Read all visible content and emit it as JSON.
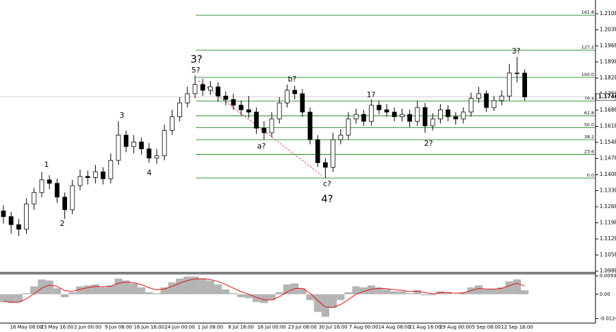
{
  "chart_data": [
    {
      "type": "candlestick",
      "categories": [
        null,
        null,
        null,
        "16 May 08:00",
        null,
        null,
        null,
        "23 May 16:00",
        null,
        null,
        null,
        "2 Jun 00:00",
        null,
        null,
        null,
        "9 Jun 08:00",
        null,
        null,
        null,
        "16 Jun 16:00",
        null,
        null,
        null,
        "24 Jun 00:00",
        null,
        null,
        null,
        "1 Jul 08:00",
        null,
        null,
        null,
        "8 Jul 16:00",
        null,
        null,
        null,
        "16 Jul 00:00",
        null,
        null,
        null,
        "23 Jul 08:00",
        null,
        null,
        null,
        "30 Jul 16:00",
        null,
        null,
        null,
        "7 Aug 00:00",
        null,
        null,
        null,
        "14 Aug 08:00",
        null,
        null,
        null,
        "21 Aug 16:00",
        null,
        null,
        null,
        "29 Aug 00:00",
        null,
        null,
        null,
        "5 Sep 08:00",
        null,
        null,
        null,
        "12 Sep 16:00",
        null
      ],
      "open": [
        1.125,
        1.1225,
        1.119,
        1.117,
        1.128,
        1.133,
        1.1385,
        1.137,
        1.131,
        1.1255,
        1.136,
        1.14,
        1.1395,
        1.142,
        1.139,
        1.147,
        1.158,
        1.153,
        1.155,
        1.152,
        1.148,
        1.149,
        1.16,
        1.166,
        1.172,
        1.176,
        1.18,
        1.1775,
        1.179,
        1.175,
        1.1735,
        1.171,
        1.169,
        1.168,
        1.161,
        1.159,
        1.165,
        1.172,
        1.1775,
        1.176,
        1.168,
        1.156,
        1.146,
        1.144,
        1.156,
        1.158,
        1.165,
        1.167,
        1.164,
        1.171,
        1.169,
        1.168,
        1.166,
        1.167,
        1.164,
        1.17,
        1.162,
        1.165,
        1.169,
        1.166,
        1.165,
        1.168,
        1.174,
        1.176,
        1.17,
        1.173,
        1.175,
        1.185,
        1.185
      ],
      "high": [
        1.1275,
        1.1245,
        1.1215,
        1.1305,
        1.135,
        1.142,
        1.1405,
        1.139,
        1.133,
        1.1385,
        1.143,
        1.1425,
        1.145,
        1.144,
        1.15,
        1.164,
        1.16,
        1.158,
        1.157,
        1.1545,
        1.152,
        1.1625,
        1.169,
        1.1745,
        1.179,
        1.184,
        1.1825,
        1.1815,
        1.181,
        1.177,
        1.176,
        1.173,
        1.175,
        1.17,
        1.164,
        1.168,
        1.1745,
        1.18,
        1.1795,
        1.178,
        1.17,
        1.158,
        1.148,
        1.159,
        1.1605,
        1.168,
        1.1695,
        1.169,
        1.1735,
        1.173,
        1.1715,
        1.17,
        1.1695,
        1.169,
        1.173,
        1.172,
        1.1675,
        1.1715,
        1.171,
        1.168,
        1.17,
        1.1765,
        1.179,
        1.1775,
        1.175,
        1.1775,
        1.189,
        1.192,
        1.1865
      ],
      "low": [
        1.1195,
        1.115,
        1.114,
        1.115,
        1.1255,
        1.131,
        1.1345,
        1.1285,
        1.1215,
        1.1235,
        1.134,
        1.1365,
        1.137,
        1.1365,
        1.137,
        1.145,
        1.1505,
        1.15,
        1.1495,
        1.146,
        1.1455,
        1.147,
        1.158,
        1.164,
        1.17,
        1.174,
        1.175,
        1.1755,
        1.1725,
        1.171,
        1.169,
        1.1665,
        1.1655,
        1.1585,
        1.156,
        1.157,
        1.163,
        1.17,
        1.1735,
        1.166,
        1.154,
        1.144,
        1.1393,
        1.142,
        1.154,
        1.156,
        1.163,
        1.162,
        1.162,
        1.167,
        1.166,
        1.164,
        1.164,
        1.1615,
        1.162,
        1.159,
        1.16,
        1.163,
        1.164,
        1.1625,
        1.163,
        1.166,
        1.172,
        1.168,
        1.1685,
        1.171,
        1.173,
        1.181,
        1.173
      ],
      "close": [
        1.1225,
        1.119,
        1.117,
        1.128,
        1.133,
        1.1385,
        1.137,
        1.131,
        1.1255,
        1.136,
        1.14,
        1.1395,
        1.142,
        1.139,
        1.147,
        1.158,
        1.153,
        1.155,
        1.152,
        1.148,
        1.149,
        1.16,
        1.166,
        1.172,
        1.176,
        1.18,
        1.1775,
        1.179,
        1.175,
        1.1735,
        1.171,
        1.169,
        1.168,
        1.161,
        1.159,
        1.165,
        1.172,
        1.1775,
        1.176,
        1.168,
        1.156,
        1.146,
        1.144,
        1.156,
        1.158,
        1.165,
        1.167,
        1.164,
        1.171,
        1.169,
        1.168,
        1.166,
        1.167,
        1.164,
        1.17,
        1.162,
        1.165,
        1.169,
        1.166,
        1.165,
        1.168,
        1.174,
        1.176,
        1.17,
        1.173,
        1.175,
        1.185,
        1.185,
        1.1746
      ],
      "ylim": [
        1.0982,
        1.2168
      ],
      "yticks": [
        1.2108,
        1.2038,
        1.1968,
        1.1898,
        1.1828,
        1.1758,
        1.1688,
        1.1618,
        1.1548,
        1.1478,
        1.1408,
        1.1338,
        1.1268,
        1.1198,
        1.1128,
        1.1058,
        1.0988
      ],
      "last_price": 1.1746,
      "fib": {
        "color": "#1f8a1f",
        "levels": [
          "161.8",
          "127.2",
          "100.0",
          "76.4",
          "61.8",
          "50.0",
          "38.2",
          "23.6",
          "0.0"
        ],
        "prices": [
          1.2102,
          1.195,
          1.1831,
          1.1728,
          1.1664,
          1.1612,
          1.156,
          1.1496,
          1.1393
        ]
      },
      "wave_labels": [
        {
          "text": "1",
          "color": "#e02020"
        },
        {
          "text": "2",
          "color": "#e02020"
        },
        {
          "text": "3",
          "color": "#e02020"
        },
        {
          "text": "4",
          "color": "#e02020"
        },
        {
          "text": "5?",
          "color": "#e02020"
        },
        {
          "text": "3?",
          "color": "#1010e0"
        },
        {
          "text": "a?",
          "color": "#e02020"
        },
        {
          "text": "b?",
          "color": "#e02020"
        },
        {
          "text": "c?",
          "color": "#e02020"
        },
        {
          "text": "4?",
          "color": "#1010e0"
        },
        {
          "text": "1?",
          "color": "#e02020"
        },
        {
          "text": "2?",
          "color": "#e02020"
        },
        {
          "text": "3?",
          "color": "#e02020"
        }
      ]
    },
    {
      "type": "macd",
      "histogram": {
        "color": "#b4b4b4",
        "values": [
          -0.004,
          -0.0045,
          -0.004,
          0.0005,
          0.004,
          0.0075,
          0.007,
          0.003,
          -0.0015,
          0.001,
          0.004,
          0.0045,
          0.005,
          0.0035,
          0.0045,
          0.008,
          0.007,
          0.0055,
          0.0035,
          0.001,
          0.0005,
          0.0035,
          0.006,
          0.008,
          0.009,
          0.009,
          0.008,
          0.007,
          0.005,
          0.0025,
          0.0005,
          -0.0015,
          -0.002,
          -0.004,
          -0.0045,
          -0.003,
          0.001,
          0.005,
          0.0055,
          0.003,
          -0.003,
          -0.009,
          -0.0115,
          -0.007,
          -0.003,
          0.001,
          0.004,
          0.0035,
          0.0045,
          0.0035,
          0.0025,
          0.0015,
          0.0015,
          0.0005,
          0.002,
          -0.0005,
          -0.0005,
          0.0015,
          0.001,
          0.0,
          0.001,
          0.0035,
          0.0045,
          0.0025,
          0.0025,
          0.0035,
          0.0065,
          0.0075,
          0.002
        ]
      },
      "signal": {
        "color": "#e01010",
        "values": [
          -0.0035,
          -0.004,
          -0.0041,
          -0.0023,
          0.0002,
          0.0031,
          0.0047,
          0.004,
          0.0018,
          0.0015,
          0.0025,
          0.0033,
          0.004,
          0.0038,
          0.0041,
          0.0056,
          0.0062,
          0.0059,
          0.0049,
          0.0033,
          0.0022,
          0.0027,
          0.004,
          0.0056,
          0.007,
          0.0078,
          0.0079,
          0.0075,
          0.0065,
          0.0049,
          0.0031,
          0.0013,
          0.0,
          -0.0016,
          -0.0028,
          -0.0029,
          -0.0013,
          0.0012,
          0.0029,
          0.003,
          0.0006,
          -0.0032,
          -0.0065,
          -0.0067,
          -0.0052,
          -0.0027,
          0.0,
          0.0014,
          0.0026,
          0.003,
          0.0028,
          0.0023,
          0.002,
          0.0014,
          0.0016,
          0.0008,
          0.0003,
          0.0008,
          0.0009,
          0.0005,
          0.0007,
          0.0018,
          0.0029,
          0.0027,
          0.0026,
          0.003,
          0.0044,
          0.0056,
          0.0042
        ]
      },
      "ylim": [
        -0.0147,
        0.0111
      ],
      "yticks": [
        0.00935,
        {
          "value": 0,
          "label": "0.00"
        },
        -0.0124
      ]
    }
  ]
}
